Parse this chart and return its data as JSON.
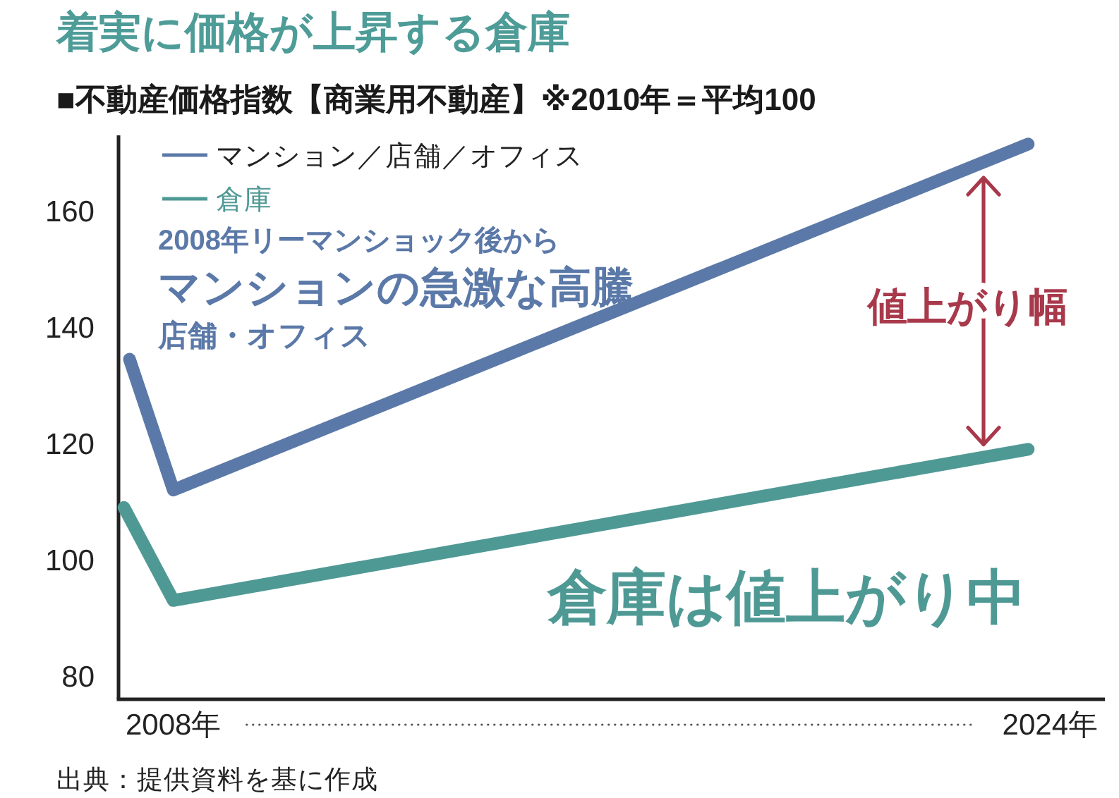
{
  "chart_data": {
    "type": "line",
    "title": "着実に価格が上昇する倉庫",
    "subtitle": "■不動産価格指数【商業用不動産】※2010年＝平均100",
    "series": [
      {
        "name": "マンション／店舗／オフィス",
        "color": "#5b79a8",
        "x": [
          2007.2,
          2008,
          2023.6
        ],
        "values": [
          134.5,
          112,
          171.5
        ]
      },
      {
        "name": "倉庫",
        "color": "#4f9995",
        "x": [
          2007.1,
          2008,
          2023.6
        ],
        "values": [
          109,
          93,
          119
        ]
      }
    ],
    "xlim": [
      2007,
      2025
    ],
    "xticks": [
      {
        "value": 2008,
        "label": "2008年"
      },
      {
        "value": 2024,
        "label": "2024年"
      }
    ],
    "ylim": [
      76,
      173
    ],
    "yticks": [
      80,
      100,
      120,
      140,
      160
    ],
    "grid": false,
    "legend": "top left",
    "line_style": "solid",
    "annotations": [
      "2008年リーマンショック後から",
      "マンションの急激な高騰",
      "店舗・オフィス",
      "値上がり幅",
      "倉庫は値上がり中",
      "出典：提供資料を基に作成"
    ]
  }
}
